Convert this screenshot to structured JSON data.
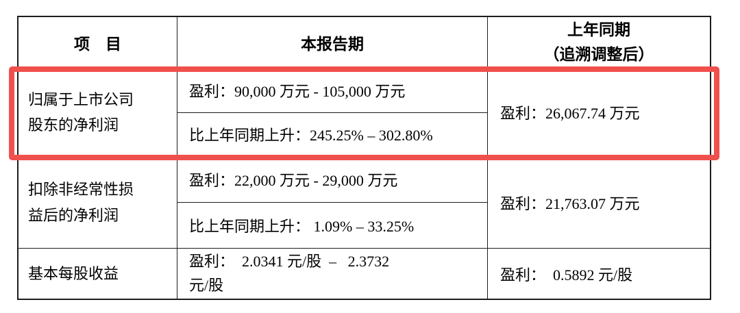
{
  "page": {
    "highlight_color": "#f0504d"
  },
  "table": {
    "header": {
      "item": "项　目",
      "current_period": "本报告期",
      "prior_period_line1": "上年同期",
      "prior_period_line2": "（追溯调整后）"
    },
    "rows": [
      {
        "label": "归属于上市公司股东的净利润",
        "current_profit": "盈利：90,000 万元 - 105,000 万元",
        "current_change": "比上年同期上升：245.25% – 302.80%",
        "prior": "盈利：26,067.74 万元",
        "highlighted": true
      },
      {
        "label": "扣除非经常性损益后的净利润",
        "current_profit": "盈利：22,000 万元 - 29,000 万元",
        "current_change": "比上年同期上升： 1.09% – 33.25%",
        "prior": "盈利：21,763.07 万元",
        "highlighted": false
      },
      {
        "label": "基本每股收益",
        "current_line1": "盈利：  2.0341 元/股  –   2.3732",
        "current_line2": "元/股",
        "prior": "盈利：  0.5892 元/股",
        "highlighted": false
      }
    ]
  }
}
